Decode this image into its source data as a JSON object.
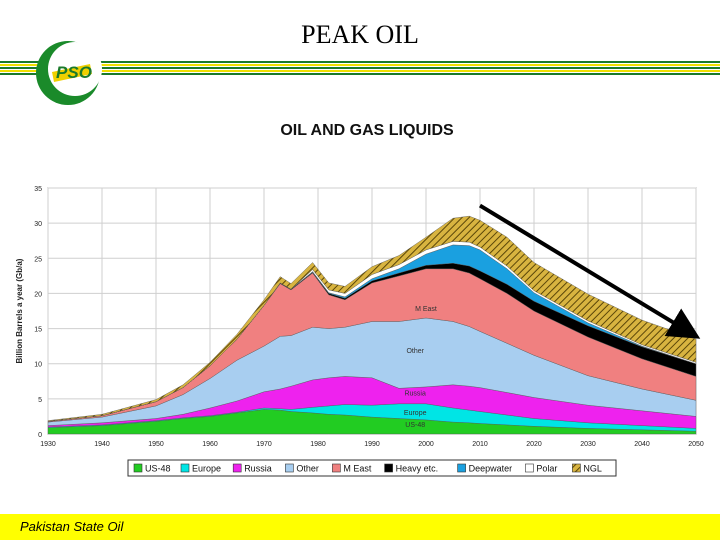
{
  "slide": {
    "title": "PEAK OIL",
    "footer": "Pakistan State Oil",
    "logo_text": "PSO",
    "colors": {
      "stripe_green": "#1a7a2a",
      "stripe_yellow": "#f0e000",
      "footer_bg": "#ffff00"
    }
  },
  "chart_data": {
    "type": "area",
    "title": "OIL AND GAS LIQUIDS",
    "ylabel": "Billion Barrels a year (Gb/a)",
    "xlabel": "",
    "xlim": [
      1930,
      2050
    ],
    "ylim": [
      0,
      35
    ],
    "x_ticks": [
      1930,
      1940,
      1950,
      1960,
      1970,
      1980,
      1990,
      2000,
      2010,
      2020,
      2030,
      2040,
      2050
    ],
    "y_ticks": [
      0,
      5,
      10,
      15,
      20,
      25,
      30,
      35
    ],
    "grid": true,
    "legend_position": "bottom",
    "x": [
      1930,
      1940,
      1950,
      1955,
      1960,
      1965,
      1970,
      1973,
      1975,
      1979,
      1982,
      1985,
      1990,
      1995,
      2000,
      2005,
      2008,
      2010,
      2015,
      2020,
      2030,
      2040,
      2050
    ],
    "series": [
      {
        "name": "US-48",
        "color": "#22cc22",
        "values": [
          0.9,
          1.2,
          1.8,
          2.2,
          2.5,
          3.0,
          3.5,
          3.4,
          3.2,
          3.0,
          2.8,
          2.7,
          2.4,
          2.2,
          2.0,
          1.7,
          1.6,
          1.5,
          1.3,
          1.1,
          0.8,
          0.6,
          0.4
        ]
      },
      {
        "name": "Europe",
        "color": "#00e5e5",
        "values": [
          0.1,
          0.1,
          0.1,
          0.1,
          0.1,
          0.1,
          0.2,
          0.2,
          0.3,
          0.8,
          1.2,
          1.5,
          1.7,
          2.1,
          2.3,
          2.0,
          1.8,
          1.7,
          1.4,
          1.1,
          0.8,
          0.6,
          0.4
        ]
      },
      {
        "name": "Russia",
        "color": "#ee22ee",
        "values": [
          0.2,
          0.3,
          0.3,
          0.5,
          1.1,
          1.6,
          2.3,
          2.8,
          3.3,
          3.9,
          4.0,
          4.0,
          3.9,
          2.2,
          2.4,
          3.3,
          3.4,
          3.4,
          3.2,
          3.0,
          2.5,
          2.1,
          1.7
        ]
      },
      {
        "name": "Other",
        "color": "#a8cef0",
        "values": [
          0.5,
          0.8,
          1.8,
          2.8,
          4.2,
          5.8,
          6.5,
          7.5,
          7.2,
          7.5,
          7.0,
          7.0,
          8.0,
          9.5,
          9.8,
          9.0,
          8.5,
          8.0,
          7.0,
          6.0,
          4.2,
          3.1,
          2.3
        ]
      },
      {
        "name": "M East",
        "color": "#f08080",
        "values": [
          0.1,
          0.2,
          0.6,
          1.0,
          1.8,
          3.0,
          5.8,
          7.5,
          6.5,
          7.7,
          4.8,
          3.9,
          5.5,
          6.5,
          7.0,
          7.5,
          7.6,
          7.5,
          7.1,
          6.3,
          5.5,
          4.3,
          3.4
        ]
      },
      {
        "name": "Heavy etc.",
        "color": "#000000",
        "values": [
          0.0,
          0.0,
          0.0,
          0.0,
          0.0,
          0.0,
          0.0,
          0.1,
          0.1,
          0.1,
          0.2,
          0.2,
          0.3,
          0.4,
          0.5,
          0.8,
          1.0,
          1.1,
          1.3,
          1.4,
          1.6,
          1.7,
          1.8
        ]
      },
      {
        "name": "Deepwater",
        "color": "#1aa0e0",
        "values": [
          0.0,
          0.0,
          0.0,
          0.0,
          0.0,
          0.0,
          0.0,
          0.0,
          0.0,
          0.1,
          0.1,
          0.2,
          0.3,
          0.6,
          1.6,
          2.6,
          2.9,
          3.0,
          2.2,
          1.2,
          0.4,
          0.1,
          0.0
        ]
      },
      {
        "name": "Polar",
        "color": "#ffffff",
        "values": [
          0.0,
          0.0,
          0.0,
          0.0,
          0.0,
          0.0,
          0.0,
          0.0,
          0.0,
          0.3,
          0.4,
          0.5,
          0.6,
          0.6,
          0.6,
          0.5,
          0.5,
          0.4,
          0.4,
          0.3,
          0.3,
          0.2,
          0.2
        ]
      },
      {
        "name": "NGL",
        "color": "#c8a020",
        "values": [
          0.1,
          0.2,
          0.3,
          0.4,
          0.5,
          0.7,
          0.8,
          0.9,
          0.8,
          1.0,
          1.0,
          1.0,
          1.1,
          1.3,
          1.8,
          3.3,
          3.7,
          3.8,
          4.1,
          4.0,
          3.8,
          3.5,
          3.3
        ]
      }
    ],
    "in_chart_labels": [
      {
        "text": "M East",
        "x": 2000,
        "y": 17.5
      },
      {
        "text": "Other",
        "x": 1998,
        "y": 11.5
      },
      {
        "text": "Russia",
        "x": 1998,
        "y": 5.5
      },
      {
        "text": "Europe",
        "x": 1998,
        "y": 2.7
      },
      {
        "text": "US-48",
        "x": 1998,
        "y": 1.0
      }
    ],
    "arrow": {
      "from": [
        2010,
        32.5
      ],
      "to": [
        2050,
        14.0
      ]
    }
  }
}
